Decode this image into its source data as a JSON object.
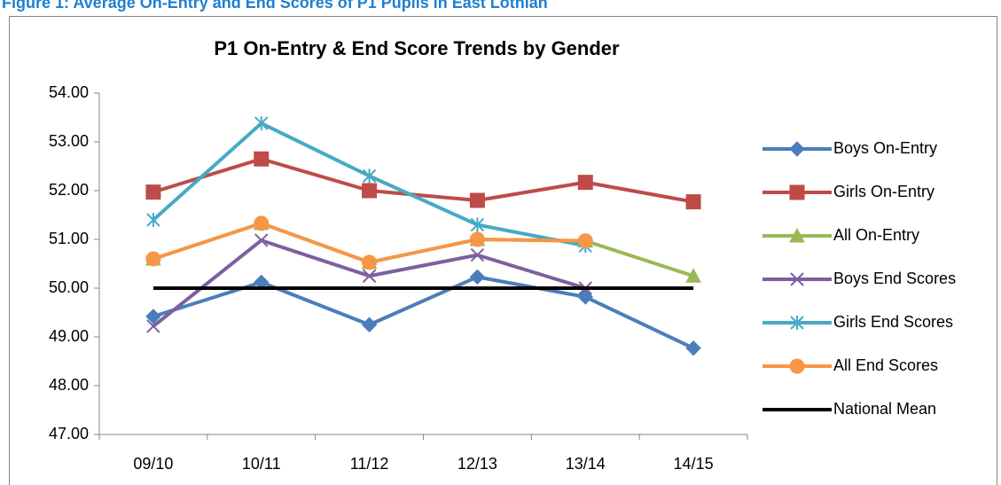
{
  "caption": "Figure 1: Average On-Entry and End Scores of P1 Pupils in East Lothian",
  "chart_data": {
    "type": "line",
    "title": "P1 On-Entry & End Score Trends by Gender",
    "categories": [
      "09/10",
      "10/11",
      "11/12",
      "12/13",
      "13/14",
      "14/15"
    ],
    "ylim": [
      47,
      54
    ],
    "yticks": [
      {
        "value": 47,
        "label": "47.00"
      },
      {
        "value": 48,
        "label": "48.00"
      },
      {
        "value": 49,
        "label": "49.00"
      },
      {
        "value": 50,
        "label": "50.00"
      },
      {
        "value": 51,
        "label": "51.00"
      },
      {
        "value": 52,
        "label": "52.00"
      },
      {
        "value": 53,
        "label": "53.00"
      },
      {
        "value": 54,
        "label": "54.00"
      }
    ],
    "grid": false,
    "legend": "right",
    "series": [
      {
        "name": "Boys On-Entry",
        "color": "#4a7ebb",
        "marker": "diamond",
        "values": [
          49.42,
          50.12,
          49.25,
          50.23,
          49.82,
          48.77
        ]
      },
      {
        "name": "Girls On-Entry",
        "color": "#be4b48",
        "marker": "square",
        "values": [
          51.97,
          52.65,
          52.0,
          51.8,
          52.17,
          51.77
        ]
      },
      {
        "name": "All On-Entry",
        "color": "#98b954",
        "marker": "triangle",
        "values": [
          50.6,
          51.33,
          50.53,
          51.0,
          50.97,
          50.25
        ]
      },
      {
        "name": "Boys End Scores",
        "color": "#7d5fa0",
        "marker": "x",
        "values": [
          49.22,
          50.98,
          50.25,
          50.68,
          50.0,
          null
        ]
      },
      {
        "name": "Girls End Scores",
        "color": "#46aac5",
        "marker": "star",
        "values": [
          51.4,
          53.38,
          52.3,
          51.3,
          50.87,
          null
        ]
      },
      {
        "name": "All End Scores",
        "color": "#f79646",
        "marker": "circle",
        "values": [
          50.6,
          51.33,
          50.53,
          51.0,
          50.97,
          null
        ]
      },
      {
        "name": "National Mean",
        "color": "#000000",
        "marker": "none",
        "values": [
          50,
          50,
          50,
          50,
          50,
          50
        ]
      }
    ]
  }
}
